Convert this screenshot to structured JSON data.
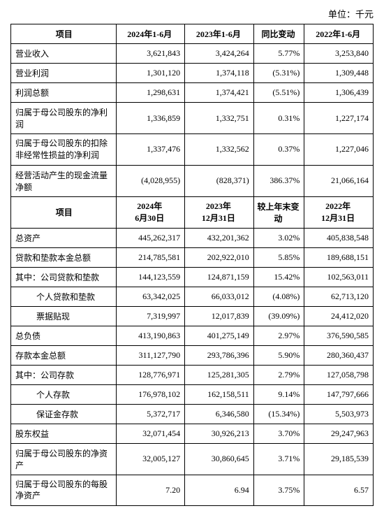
{
  "unit_label": "单位：千元",
  "table1": {
    "headers": [
      "项目",
      "2024年1-6月",
      "2023年1-6月",
      "同比变动",
      "2022年1-6月"
    ],
    "rows": [
      {
        "item": "营业收入",
        "v1": "3,621,843",
        "v2": "3,424,264",
        "chg": "5.77%",
        "v3": "3,253,840",
        "indent": 0
      },
      {
        "item": "营业利润",
        "v1": "1,301,120",
        "v2": "1,374,118",
        "chg": "(5.31%)",
        "v3": "1,309,448",
        "indent": 0
      },
      {
        "item": "利润总额",
        "v1": "1,298,631",
        "v2": "1,374,421",
        "chg": "(5.51%)",
        "v3": "1,306,439",
        "indent": 0
      },
      {
        "item": "归属于母公司股东的净利润",
        "v1": "1,336,859",
        "v2": "1,332,751",
        "chg": "0.31%",
        "v3": "1,227,174",
        "indent": 0
      },
      {
        "item": "归属于母公司股东的扣除非经常性损益的净利润",
        "v1": "1,337,476",
        "v2": "1,332,562",
        "chg": "0.37%",
        "v3": "1,227,046",
        "indent": 0,
        "multiline": true
      },
      {
        "item": "经营活动产生的现金流量净额",
        "v1": "(4,028,955)",
        "v2": "(828,371)",
        "chg": "386.37%",
        "v3": "21,066,164",
        "indent": 0
      }
    ]
  },
  "table2": {
    "headers": [
      "项目",
      "2024年\n6月30日",
      "2023年\n12月31日",
      "较上年末变动",
      "2022年\n12月31日"
    ],
    "rows": [
      {
        "item": "总资产",
        "v1": "445,262,317",
        "v2": "432,201,362",
        "chg": "3.02%",
        "v3": "405,838,548",
        "indent": 0
      },
      {
        "item": "贷款和垫款本金总额",
        "v1": "214,785,581",
        "v2": "202,922,010",
        "chg": "5.85%",
        "v3": "189,688,151",
        "indent": 0
      },
      {
        "item": "其中：公司贷款和垫款",
        "v1": "144,123,559",
        "v2": "124,871,159",
        "chg": "15.42%",
        "v3": "102,563,011",
        "indent": 0
      },
      {
        "item": "个人贷款和垫款",
        "v1": "63,342,025",
        "v2": "66,033,012",
        "chg": "(4.08%)",
        "v3": "62,713,120",
        "indent": 2
      },
      {
        "item": "票据贴现",
        "v1": "7,319,997",
        "v2": "12,017,839",
        "chg": "(39.09%)",
        "v3": "24,412,020",
        "indent": 2
      },
      {
        "item": "总负债",
        "v1": "413,190,863",
        "v2": "401,275,149",
        "chg": "2.97%",
        "v3": "376,590,585",
        "indent": 0
      },
      {
        "item": "存款本金总额",
        "v1": "311,127,790",
        "v2": "293,786,396",
        "chg": "5.90%",
        "v3": "280,360,437",
        "indent": 0
      },
      {
        "item": "其中：公司存款",
        "v1": "128,776,971",
        "v2": "125,281,305",
        "chg": "2.79%",
        "v3": "127,058,798",
        "indent": 0
      },
      {
        "item": "个人存款",
        "v1": "176,978,102",
        "v2": "162,158,511",
        "chg": "9.14%",
        "v3": "147,797,666",
        "indent": 2
      },
      {
        "item": "保证金存款",
        "v1": "5,372,717",
        "v2": "6,346,580",
        "chg": "(15.34%)",
        "v3": "5,503,973",
        "indent": 2
      },
      {
        "item": "股东权益",
        "v1": "32,071,454",
        "v2": "30,926,213",
        "chg": "3.70%",
        "v3": "29,247,963",
        "indent": 0
      },
      {
        "item": "归属于母公司股东的净资产",
        "v1": "32,005,127",
        "v2": "30,860,645",
        "chg": "3.71%",
        "v3": "29,185,539",
        "indent": 0
      },
      {
        "item": "归属于母公司股东的每股净资产",
        "v1": "7.20",
        "v2": "6.94",
        "chg": "3.75%",
        "v3": "6.57",
        "indent": 0,
        "multiline": true
      }
    ]
  }
}
